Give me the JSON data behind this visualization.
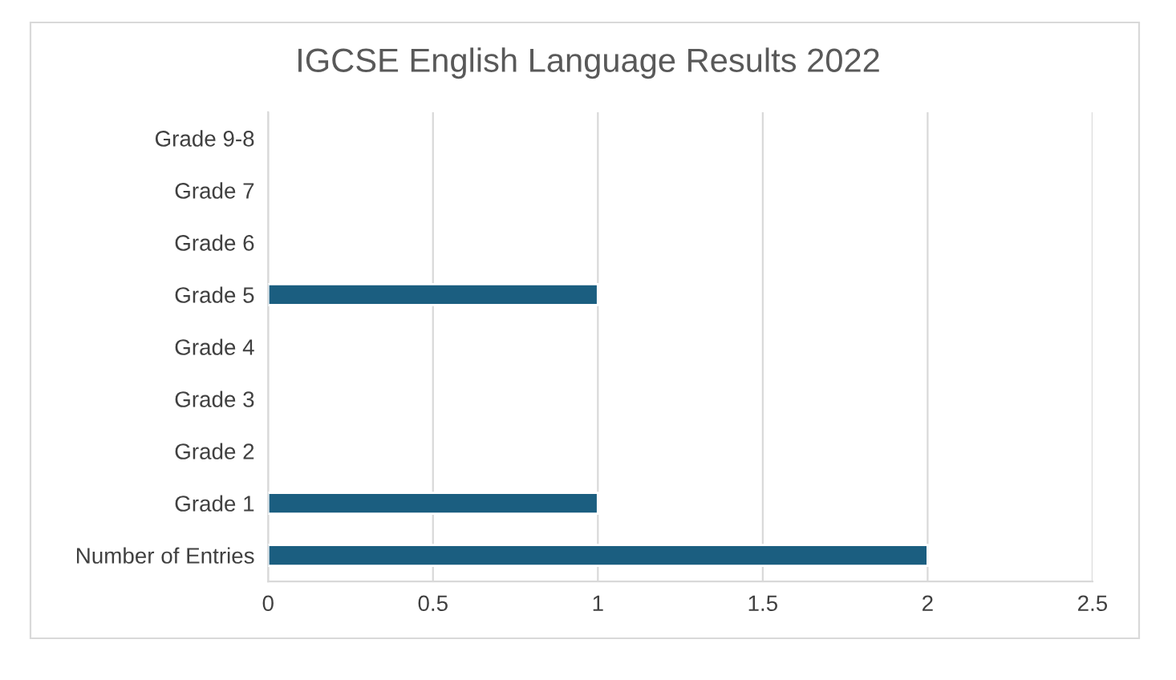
{
  "chart_data": {
    "type": "bar",
    "orientation": "horizontal",
    "title": "IGCSE English Language Results 2022",
    "categories": [
      "Grade 9-8",
      "Grade 7",
      "Grade 6",
      "Grade 5",
      "Grade 4",
      "Grade 3",
      "Grade 2",
      "Grade 1",
      "Number of Entries"
    ],
    "values": [
      0,
      0,
      0,
      1,
      0,
      0,
      0,
      1,
      2
    ],
    "color": "#1b5e80",
    "xlim": [
      0,
      2.5
    ],
    "xticks": [
      0,
      0.5,
      1,
      1.5,
      2,
      2.5
    ],
    "grid": "x"
  }
}
